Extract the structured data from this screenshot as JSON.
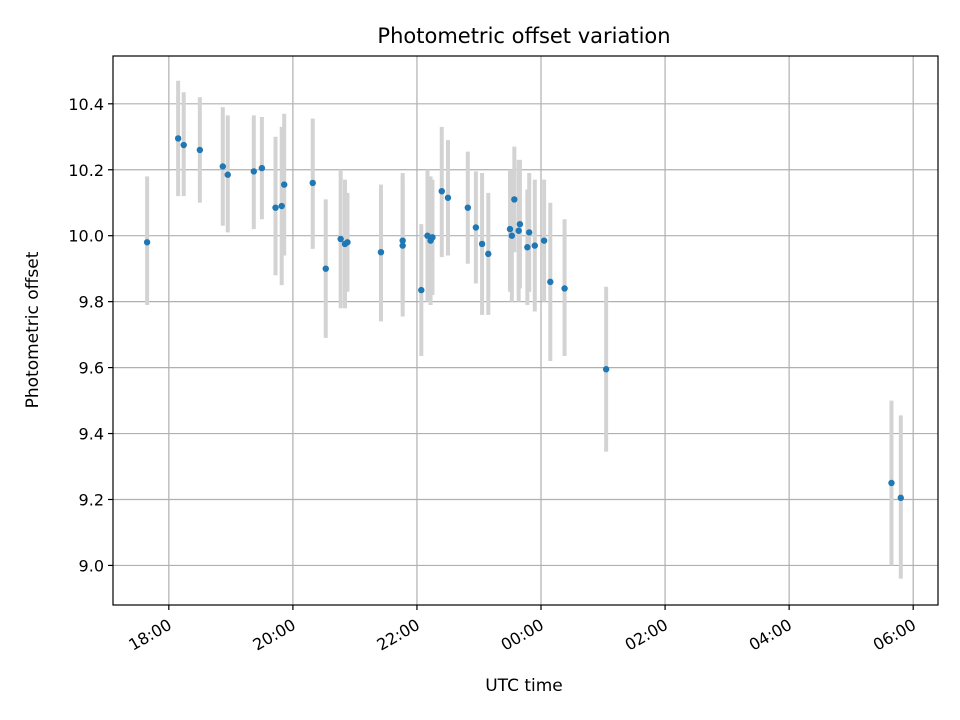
{
  "chart_data": {
    "type": "scatter",
    "title": "Photometric offset variation",
    "xlabel": "UTC time",
    "ylabel": "Photometric offset",
    "grid": true,
    "x_unit": "hours since 00:00 UTC",
    "xlim": [
      -6.9,
      6.4
    ],
    "ylim": [
      8.88,
      10.545
    ],
    "x_ticks": [
      {
        "value": -6,
        "label": "18:00"
      },
      {
        "value": -4,
        "label": "20:00"
      },
      {
        "value": -2,
        "label": "22:00"
      },
      {
        "value": 0,
        "label": "00:00"
      },
      {
        "value": 2,
        "label": "02:00"
      },
      {
        "value": 4,
        "label": "04:00"
      },
      {
        "value": 6,
        "label": "06:00"
      }
    ],
    "y_ticks": [
      {
        "value": 9.0,
        "label": "9.0"
      },
      {
        "value": 9.2,
        "label": "9.2"
      },
      {
        "value": 9.4,
        "label": "9.4"
      },
      {
        "value": 9.6,
        "label": "9.6"
      },
      {
        "value": 9.8,
        "label": "9.8"
      },
      {
        "value": 10.0,
        "label": "10.0"
      },
      {
        "value": 10.2,
        "label": "10.2"
      },
      {
        "value": 10.4,
        "label": "10.4"
      }
    ],
    "colors": {
      "point": "#1f77b4",
      "errorbar": "#d3d3d3",
      "grid": "#b0b0b0"
    },
    "points": [
      {
        "x": -6.35,
        "y": 9.98,
        "lo": 9.79,
        "hi": 10.18
      },
      {
        "x": -5.85,
        "y": 10.295,
        "lo": 10.12,
        "hi": 10.47
      },
      {
        "x": -5.76,
        "y": 10.275,
        "lo": 10.12,
        "hi": 10.435
      },
      {
        "x": -5.5,
        "y": 10.26,
        "lo": 10.1,
        "hi": 10.42
      },
      {
        "x": -5.13,
        "y": 10.21,
        "lo": 10.03,
        "hi": 10.39
      },
      {
        "x": -5.05,
        "y": 10.185,
        "lo": 10.01,
        "hi": 10.365
      },
      {
        "x": -4.63,
        "y": 10.195,
        "lo": 10.02,
        "hi": 10.365
      },
      {
        "x": -4.5,
        "y": 10.205,
        "lo": 10.05,
        "hi": 10.36
      },
      {
        "x": -4.28,
        "y": 10.085,
        "lo": 9.88,
        "hi": 10.3
      },
      {
        "x": -4.18,
        "y": 10.09,
        "lo": 9.85,
        "hi": 10.33
      },
      {
        "x": -4.14,
        "y": 10.155,
        "lo": 9.94,
        "hi": 10.37
      },
      {
        "x": -3.68,
        "y": 10.16,
        "lo": 9.96,
        "hi": 10.355
      },
      {
        "x": -3.47,
        "y": 9.9,
        "lo": 9.69,
        "hi": 10.11
      },
      {
        "x": -3.23,
        "y": 9.99,
        "lo": 9.78,
        "hi": 10.2
      },
      {
        "x": -3.16,
        "y": 9.975,
        "lo": 9.78,
        "hi": 10.17
      },
      {
        "x": -3.12,
        "y": 9.98,
        "lo": 9.83,
        "hi": 10.13
      },
      {
        "x": -2.58,
        "y": 9.95,
        "lo": 9.74,
        "hi": 10.155
      },
      {
        "x": -2.23,
        "y": 9.97,
        "lo": 9.755,
        "hi": 10.19
      },
      {
        "x": -2.23,
        "y": 9.985,
        "lo": 9.79,
        "hi": 10.18
      },
      {
        "x": -1.93,
        "y": 9.835,
        "lo": 9.635,
        "hi": 10.035
      },
      {
        "x": -1.83,
        "y": 10.0,
        "lo": 9.8,
        "hi": 10.2
      },
      {
        "x": -1.78,
        "y": 9.985,
        "lo": 9.79,
        "hi": 10.18
      },
      {
        "x": -1.75,
        "y": 9.995,
        "lo": 9.82,
        "hi": 10.17
      },
      {
        "x": -1.6,
        "y": 10.135,
        "lo": 9.935,
        "hi": 10.33
      },
      {
        "x": -1.5,
        "y": 10.115,
        "lo": 9.94,
        "hi": 10.29
      },
      {
        "x": -1.18,
        "y": 10.085,
        "lo": 9.915,
        "hi": 10.255
      },
      {
        "x": -1.05,
        "y": 10.025,
        "lo": 9.855,
        "hi": 10.195
      },
      {
        "x": -0.95,
        "y": 9.975,
        "lo": 9.76,
        "hi": 10.19
      },
      {
        "x": -0.85,
        "y": 9.945,
        "lo": 9.76,
        "hi": 10.13
      },
      {
        "x": -0.5,
        "y": 10.02,
        "lo": 9.83,
        "hi": 10.2
      },
      {
        "x": -0.47,
        "y": 10.0,
        "lo": 9.8,
        "hi": 10.2
      },
      {
        "x": -0.43,
        "y": 10.11,
        "lo": 9.95,
        "hi": 10.27
      },
      {
        "x": -0.36,
        "y": 10.015,
        "lo": 9.8,
        "hi": 10.23
      },
      {
        "x": -0.34,
        "y": 10.035,
        "lo": 9.84,
        "hi": 10.23
      },
      {
        "x": -0.22,
        "y": 9.965,
        "lo": 9.79,
        "hi": 10.14
      },
      {
        "x": -0.19,
        "y": 10.01,
        "lo": 9.83,
        "hi": 10.19
      },
      {
        "x": -0.1,
        "y": 9.97,
        "lo": 9.77,
        "hi": 10.17
      },
      {
        "x": 0.05,
        "y": 9.985,
        "lo": 9.8,
        "hi": 10.17
      },
      {
        "x": 0.15,
        "y": 9.86,
        "lo": 9.62,
        "hi": 10.1
      },
      {
        "x": 0.38,
        "y": 9.84,
        "lo": 9.635,
        "hi": 10.05
      },
      {
        "x": 1.05,
        "y": 9.595,
        "lo": 9.345,
        "hi": 9.845
      },
      {
        "x": 5.65,
        "y": 9.25,
        "lo": 9.0,
        "hi": 9.5
      },
      {
        "x": 5.8,
        "y": 9.205,
        "lo": 8.96,
        "hi": 9.455
      }
    ]
  }
}
